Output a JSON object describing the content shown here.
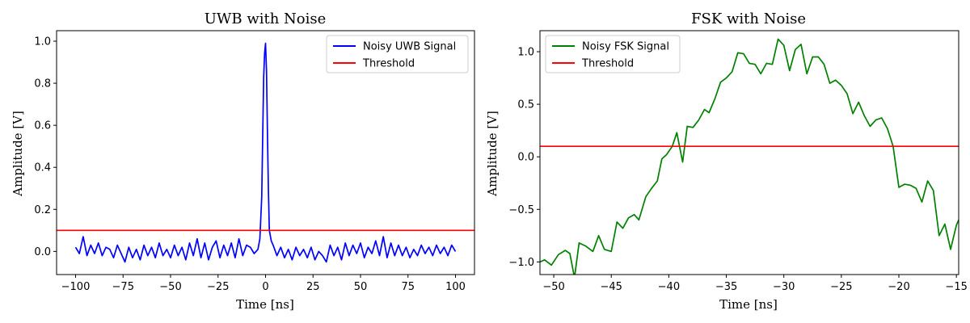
{
  "colors": {
    "uwb": "#0000ff",
    "fsk": "#008000",
    "threshold": "#ff0000",
    "axes": "#000000",
    "legend_border": "#cccccc"
  },
  "chart_data": [
    {
      "type": "line",
      "title": "UWB with Noise",
      "xlabel": "Time [ns]",
      "ylabel": "Amplitude [V]",
      "xlim": [
        -110,
        110
      ],
      "ylim": [
        -0.11,
        1.05
      ],
      "xticks": [
        -100,
        -75,
        -50,
        -25,
        0,
        25,
        50,
        75,
        100
      ],
      "xtick_labels": [
        "−100",
        "−75",
        "−50",
        "−25",
        "0",
        "25",
        "50",
        "75",
        "100"
      ],
      "yticks": [
        0.0,
        0.2,
        0.4,
        0.6,
        0.8,
        1.0
      ],
      "ytick_labels": [
        "0.0",
        "0.2",
        "0.4",
        "0.6",
        "0.8",
        "1.0"
      ],
      "legend_position": "top-right",
      "series": [
        {
          "name": "Noisy UWB Signal",
          "color": "#0000ff",
          "x": [
            -100,
            -98,
            -96,
            -94,
            -92,
            -90,
            -88,
            -86,
            -84,
            -82,
            -80,
            -78,
            -76,
            -74,
            -72,
            -70,
            -68,
            -66,
            -64,
            -62,
            -60,
            -58,
            -56,
            -54,
            -52,
            -50,
            -48,
            -46,
            -44,
            -42,
            -40,
            -38,
            -36,
            -34,
            -32,
            -30,
            -28,
            -26,
            -24,
            -22,
            -20,
            -18,
            -16,
            -14,
            -12,
            -10,
            -8,
            -6,
            -4,
            -3,
            -2,
            -1.5,
            -1,
            -0.5,
            0,
            0.5,
            1,
            1.5,
            2,
            3,
            4,
            6,
            8,
            10,
            12,
            14,
            16,
            18,
            20,
            22,
            24,
            26,
            28,
            30,
            32,
            34,
            36,
            38,
            40,
            42,
            44,
            46,
            48,
            50,
            52,
            54,
            56,
            58,
            60,
            62,
            64,
            66,
            68,
            70,
            72,
            74,
            76,
            78,
            80,
            82,
            84,
            86,
            88,
            90,
            92,
            94,
            96,
            98,
            100
          ],
          "y": [
            0.02,
            -0.01,
            0.07,
            -0.02,
            0.03,
            -0.01,
            0.04,
            -0.02,
            0.02,
            0.01,
            -0.03,
            0.03,
            -0.01,
            -0.05,
            0.02,
            -0.03,
            0.01,
            -0.04,
            0.03,
            -0.02,
            0.02,
            -0.03,
            0.04,
            -0.02,
            0.01,
            -0.03,
            0.03,
            -0.02,
            0.02,
            -0.04,
            0.04,
            -0.02,
            0.06,
            -0.03,
            0.04,
            -0.04,
            0.02,
            0.05,
            -0.03,
            0.03,
            -0.02,
            0.04,
            -0.03,
            0.06,
            -0.02,
            0.03,
            0.02,
            -0.01,
            0.01,
            0.06,
            0.26,
            0.55,
            0.83,
            0.94,
            0.99,
            0.86,
            0.58,
            0.3,
            0.1,
            0.05,
            0.03,
            -0.02,
            0.02,
            -0.03,
            0.01,
            -0.04,
            0.02,
            -0.02,
            0.01,
            -0.03,
            0.02,
            -0.04,
            0.0,
            -0.02,
            -0.05,
            0.03,
            -0.02,
            0.02,
            -0.04,
            0.04,
            -0.02,
            0.03,
            -0.01,
            0.04,
            -0.03,
            0.02,
            -0.01,
            0.05,
            -0.02,
            0.07,
            -0.03,
            0.04,
            -0.02,
            0.03,
            -0.02,
            0.02,
            -0.03,
            0.01,
            -0.02,
            0.03,
            -0.01,
            0.02,
            -0.02,
            0.03,
            -0.01,
            0.02,
            -0.02,
            0.03,
            0.0
          ]
        },
        {
          "name": "Threshold",
          "color": "#ff0000",
          "x": [
            -110,
            110
          ],
          "y": [
            0.1,
            0.1
          ]
        }
      ]
    },
    {
      "type": "line",
      "title": "FSK with Noise",
      "xlabel": "Time [ns]",
      "ylabel": "Amplitude [V]",
      "xlim": [
        -51.2,
        -14.8
      ],
      "ylim": [
        -1.12,
        1.2
      ],
      "xticks": [
        -50,
        -45,
        -40,
        -35,
        -30,
        -25,
        -20,
        -15
      ],
      "xtick_labels": [
        "−50",
        "−45",
        "−40",
        "−35",
        "−30",
        "−25",
        "−20",
        "−15"
      ],
      "yticks": [
        -1.0,
        -0.5,
        0.0,
        0.5,
        1.0
      ],
      "ytick_labels": [
        "−1.0",
        "−0.5",
        "0.0",
        "0.5",
        "1.0"
      ],
      "legend_position": "top-left",
      "series": [
        {
          "name": "Noisy FSK Signal",
          "color": "#008000",
          "x": [
            -51.2,
            -50.8,
            -50.2,
            -49.6,
            -49.0,
            -48.6,
            -48.2,
            -47.8,
            -47.2,
            -46.6,
            -46.1,
            -45.6,
            -45.0,
            -44.5,
            -44.0,
            -43.5,
            -43.0,
            -42.6,
            -42.0,
            -41.5,
            -41.0,
            -40.6,
            -40.2,
            -39.7,
            -39.3,
            -38.8,
            -38.4,
            -37.9,
            -37.4,
            -36.9,
            -36.5,
            -36.0,
            -35.5,
            -35.0,
            -34.5,
            -34.0,
            -33.5,
            -33.0,
            -32.5,
            -32.0,
            -31.5,
            -31.0,
            -30.5,
            -30.0,
            -29.5,
            -29.0,
            -28.5,
            -28.0,
            -27.5,
            -27.0,
            -26.5,
            -26.0,
            -25.5,
            -25.0,
            -24.5,
            -24.0,
            -23.5,
            -23.0,
            -22.5,
            -22.0,
            -21.5,
            -21.0,
            -20.5,
            -20.0,
            -19.5,
            -19.0,
            -18.5,
            -18.0,
            -17.5,
            -17.0,
            -16.5,
            -16.0,
            -15.5,
            -15.0,
            -14.8
          ],
          "y": [
            -1.0,
            -0.98,
            -1.03,
            -0.93,
            -0.89,
            -0.92,
            -1.15,
            -0.82,
            -0.85,
            -0.9,
            -0.75,
            -0.88,
            -0.9,
            -0.62,
            -0.68,
            -0.58,
            -0.55,
            -0.6,
            -0.38,
            -0.3,
            -0.23,
            -0.02,
            0.02,
            0.1,
            0.23,
            -0.05,
            0.29,
            0.28,
            0.35,
            0.45,
            0.42,
            0.55,
            0.71,
            0.75,
            0.81,
            0.99,
            0.98,
            0.89,
            0.88,
            0.79,
            0.89,
            0.88,
            1.12,
            1.06,
            0.82,
            1.02,
            1.07,
            0.79,
            0.95,
            0.95,
            0.88,
            0.7,
            0.73,
            0.68,
            0.6,
            0.41,
            0.52,
            0.39,
            0.29,
            0.35,
            0.37,
            0.27,
            0.1,
            -0.29,
            -0.26,
            -0.27,
            -0.3,
            -0.43,
            -0.23,
            -0.32,
            -0.75,
            -0.64,
            -0.88,
            -0.65,
            -0.6
          ]
        },
        {
          "name": "Threshold",
          "color": "#ff0000",
          "x": [
            -51.2,
            -14.8
          ],
          "y": [
            0.1,
            0.1
          ]
        }
      ]
    }
  ]
}
